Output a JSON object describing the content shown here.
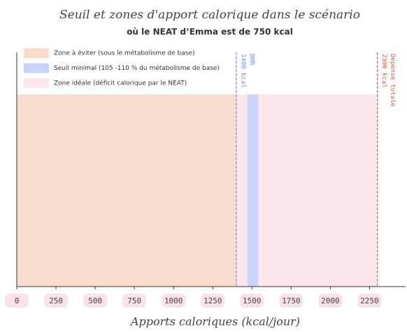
{
  "chart_data": {
    "type": "zones",
    "title": "Seuil et zones d'apport calorique dans le scénario",
    "subtitle": "où le NEAT d’Emma est de 750 kcal",
    "x_label": "Apports caloriques (kcal/jour)",
    "xlim": [
      0,
      2480
    ],
    "xticks": [
      0,
      250,
      500,
      750,
      1000,
      1250,
      1500,
      1750,
      2000,
      2250
    ],
    "zones": [
      {
        "name": "Zone à éviter (sous le métabolisme de base)",
        "color": "#f9dccd",
        "values": [
          0,
          1400
        ]
      },
      {
        "name": "Seuil minimal (105 -110 % du métabolisme de base)",
        "color": "#c9d3fb",
        "values": [
          1470,
          1540
        ]
      },
      {
        "name": "Zone idéale (déficit calorique par le NEAT)",
        "color": "#fde6ec",
        "values": [
          1400,
          2300
        ]
      }
    ],
    "vlines": [
      {
        "label": "BMR",
        "value": 1400,
        "value_label": "1400 kcal",
        "color": "#6f8ff0"
      },
      {
        "label": "Depense totale",
        "value": 2300,
        "value_label": "2300 kcal",
        "color": "#e8553a"
      }
    ]
  }
}
